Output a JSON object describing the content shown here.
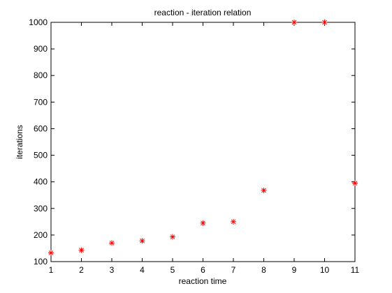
{
  "chart_data": {
    "type": "scatter",
    "title": "reaction - iteration relation",
    "xlabel": "reaction time",
    "ylabel": "iterations",
    "xlim": [
      1,
      11
    ],
    "ylim": [
      100,
      1000
    ],
    "xticks": [
      1,
      2,
      3,
      4,
      5,
      6,
      7,
      8,
      9,
      10,
      11
    ],
    "yticks": [
      100,
      200,
      300,
      400,
      500,
      600,
      700,
      800,
      900,
      1000
    ],
    "grid": false,
    "marker": "*",
    "marker_color": "#ff0000",
    "series": [
      {
        "x": [
          1,
          2,
          3,
          4,
          5,
          6,
          7,
          8,
          9,
          10,
          11
        ],
        "y": [
          133,
          143,
          170,
          178,
          193,
          245,
          250,
          368,
          1000,
          1000,
          395
        ]
      }
    ]
  }
}
